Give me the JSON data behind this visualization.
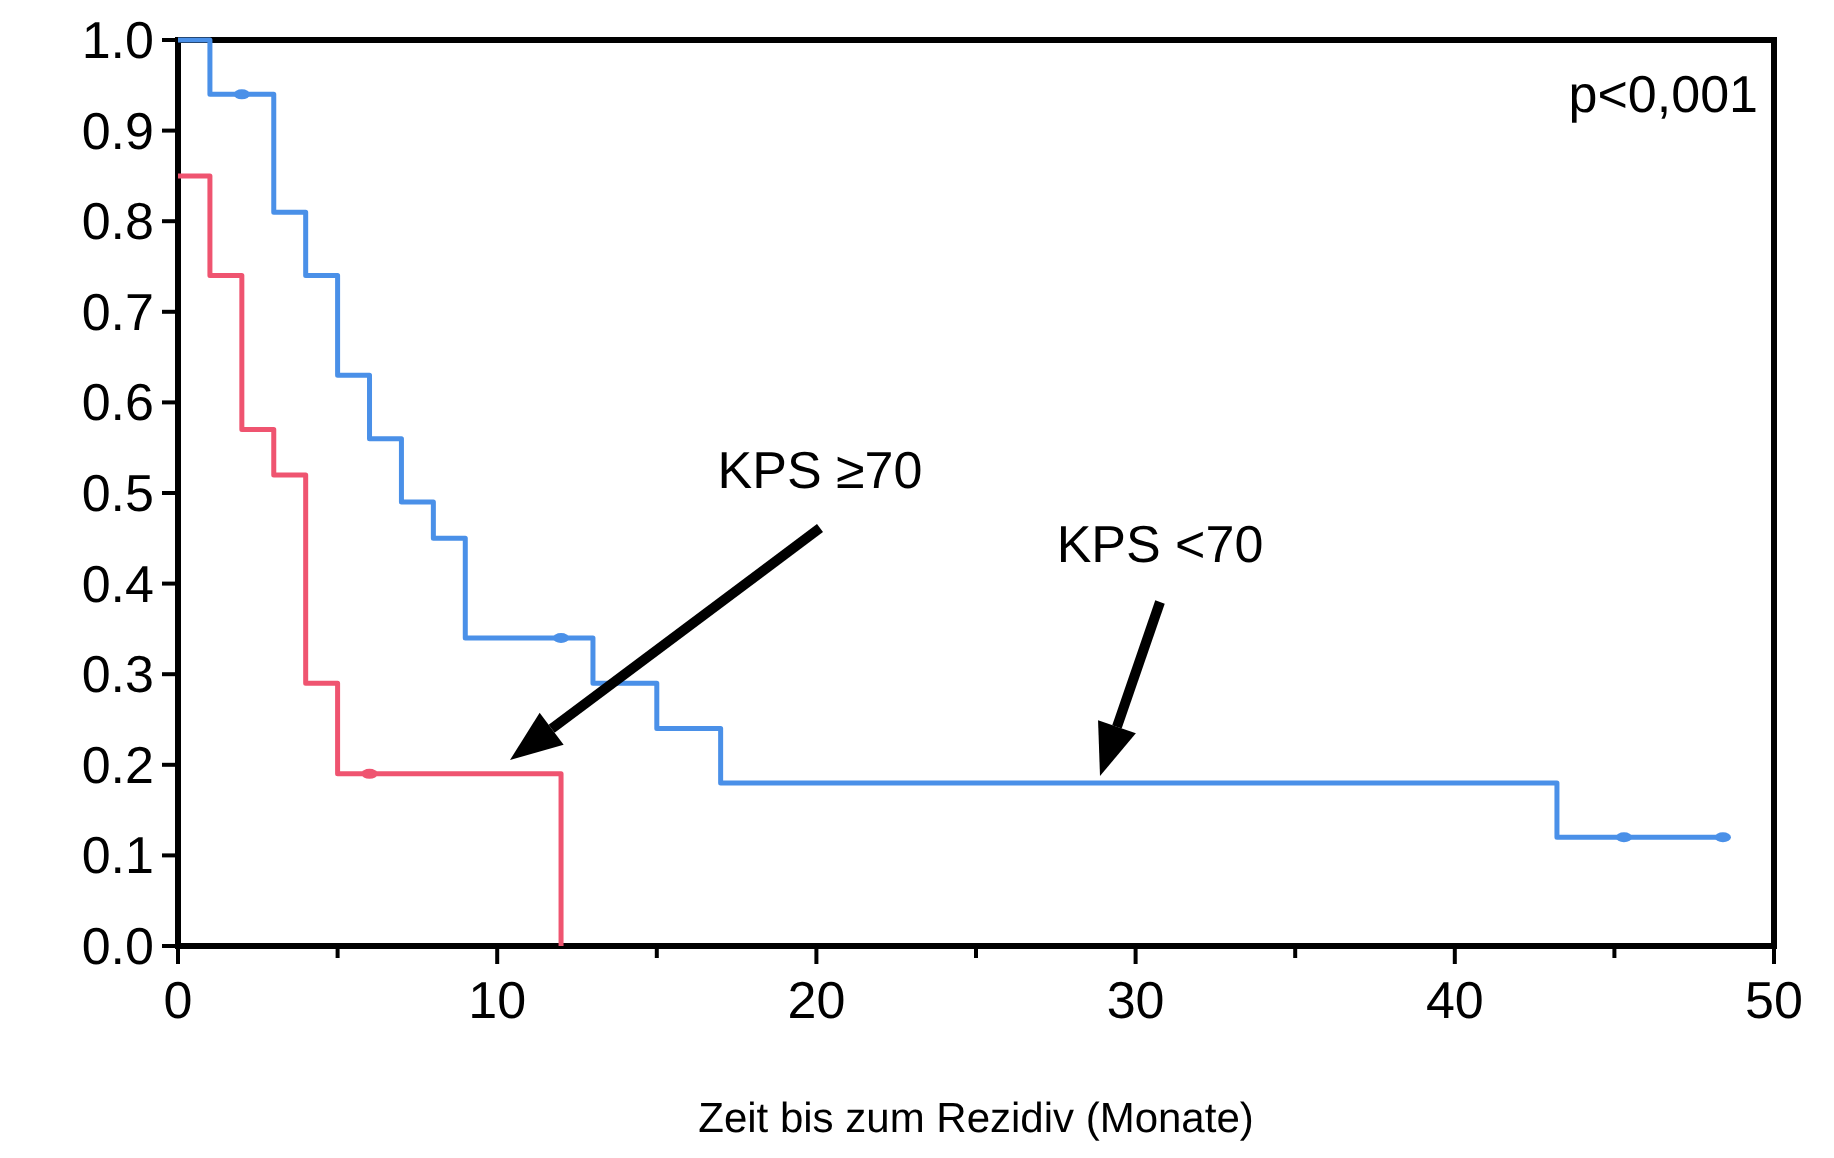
{
  "chart_data": {
    "type": "step",
    "xlabel": "Zeit bis zum Rezidiv (Monate)",
    "xlim": [
      0,
      50
    ],
    "ylim": [
      0,
      1
    ],
    "xticks": [
      0,
      {
        "value": 5,
        "label": null
      },
      10,
      {
        "value": 15,
        "label": null
      },
      20,
      {
        "value": 25,
        "label": null
      },
      30,
      {
        "value": 35,
        "label": null
      },
      40,
      {
        "value": 45,
        "label": null
      },
      50
    ],
    "yticks": [
      {
        "value": 0,
        "label": "0.0"
      },
      0.1,
      0.2,
      0.3,
      0.4,
      0.5,
      0.6,
      0.7,
      0.8,
      0.9,
      {
        "value": 1,
        "label": "1.0"
      }
    ],
    "grid": false,
    "line_style": "solid",
    "series": [
      {
        "color": "#4a90e8",
        "x": [
          0,
          1,
          3,
          4,
          5,
          6,
          7,
          8,
          9,
          13,
          15,
          17,
          43.2,
          48.4
        ],
        "values": [
          1,
          0.94,
          0.81,
          0.74,
          0.63,
          0.56,
          0.49,
          0.45,
          0.34,
          0.29,
          0.24,
          0.18,
          0.12,
          0.12
        ]
      },
      {
        "color": "#ef5470",
        "x": [
          0,
          1,
          2,
          3,
          4,
          5,
          12,
          12
        ],
        "values": [
          0.85,
          0.74,
          0.57,
          0.52,
          0.29,
          0.19,
          0.19,
          0
        ]
      },
      {
        "type": "scatter",
        "marker": "circle",
        "color": "#4a90e8",
        "x": [
          2,
          12,
          45.3,
          48.4
        ],
        "values": [
          0.94,
          0.34,
          0.12,
          0.12
        ]
      },
      {
        "type": "scatter",
        "marker": "circle",
        "color": "#ef5470",
        "x": [
          6
        ],
        "values": [
          0.19
        ]
      }
    ],
    "annotations": [
      "p<0,001",
      "KPS ≥70",
      "KPS <70"
    ]
  }
}
